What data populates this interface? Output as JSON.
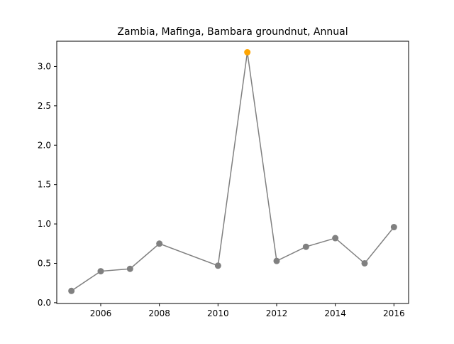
{
  "chart_data": {
    "type": "line",
    "title": "Zambia, Mafinga, Bambara groundnut, Annual",
    "xlabel": "",
    "ylabel": "",
    "xlim": [
      2004.5,
      2016.5
    ],
    "ylim": [
      -0.01,
      3.32
    ],
    "x_ticks": [
      2006,
      2008,
      2010,
      2012,
      2014,
      2016
    ],
    "y_ticks": [
      0.0,
      0.5,
      1.0,
      1.5,
      2.0,
      2.5,
      3.0
    ],
    "y_tick_labels": [
      "0.0",
      "0.5",
      "1.0",
      "1.5",
      "2.0",
      "2.5",
      "3.0"
    ],
    "grid": false,
    "legend": "none",
    "series": [
      {
        "x": [
          2005,
          2006,
          2007,
          2008,
          2010,
          2011,
          2012,
          2013,
          2014,
          2015,
          2016
        ],
        "values": [
          0.15,
          0.4,
          0.43,
          0.75,
          0.47,
          3.18,
          0.53,
          0.71,
          0.82,
          0.5,
          0.96
        ],
        "line_color": "#808080",
        "marker_color": "#808080",
        "highlight_index": 5,
        "highlight_color": "#ffa500"
      }
    ]
  }
}
